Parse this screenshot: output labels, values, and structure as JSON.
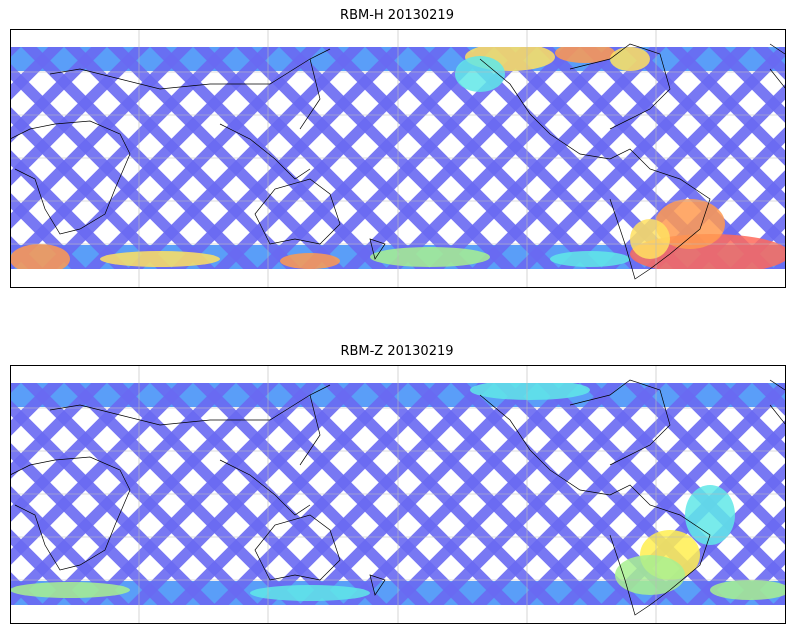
{
  "panels": [
    {
      "title": "RBM-H 20130219",
      "colors": {
        "base": "#6a6af2",
        "band": "#5a9ef8",
        "hot": [
          "#ffe060",
          "#ff9a50",
          "#ff6a5a",
          "#a8f090",
          "#60e8e8"
        ]
      },
      "hotspots": "high values near North America top band, southern Atlantic and southern band"
    },
    {
      "title": "RBM-Z 20130219",
      "colors": {
        "base": "#6a6af2",
        "band": "#5a9ef8",
        "hot": [
          "#ffee50",
          "#a8f090",
          "#60e8e8"
        ]
      },
      "hotspots": "moderate values over South America"
    }
  ]
}
